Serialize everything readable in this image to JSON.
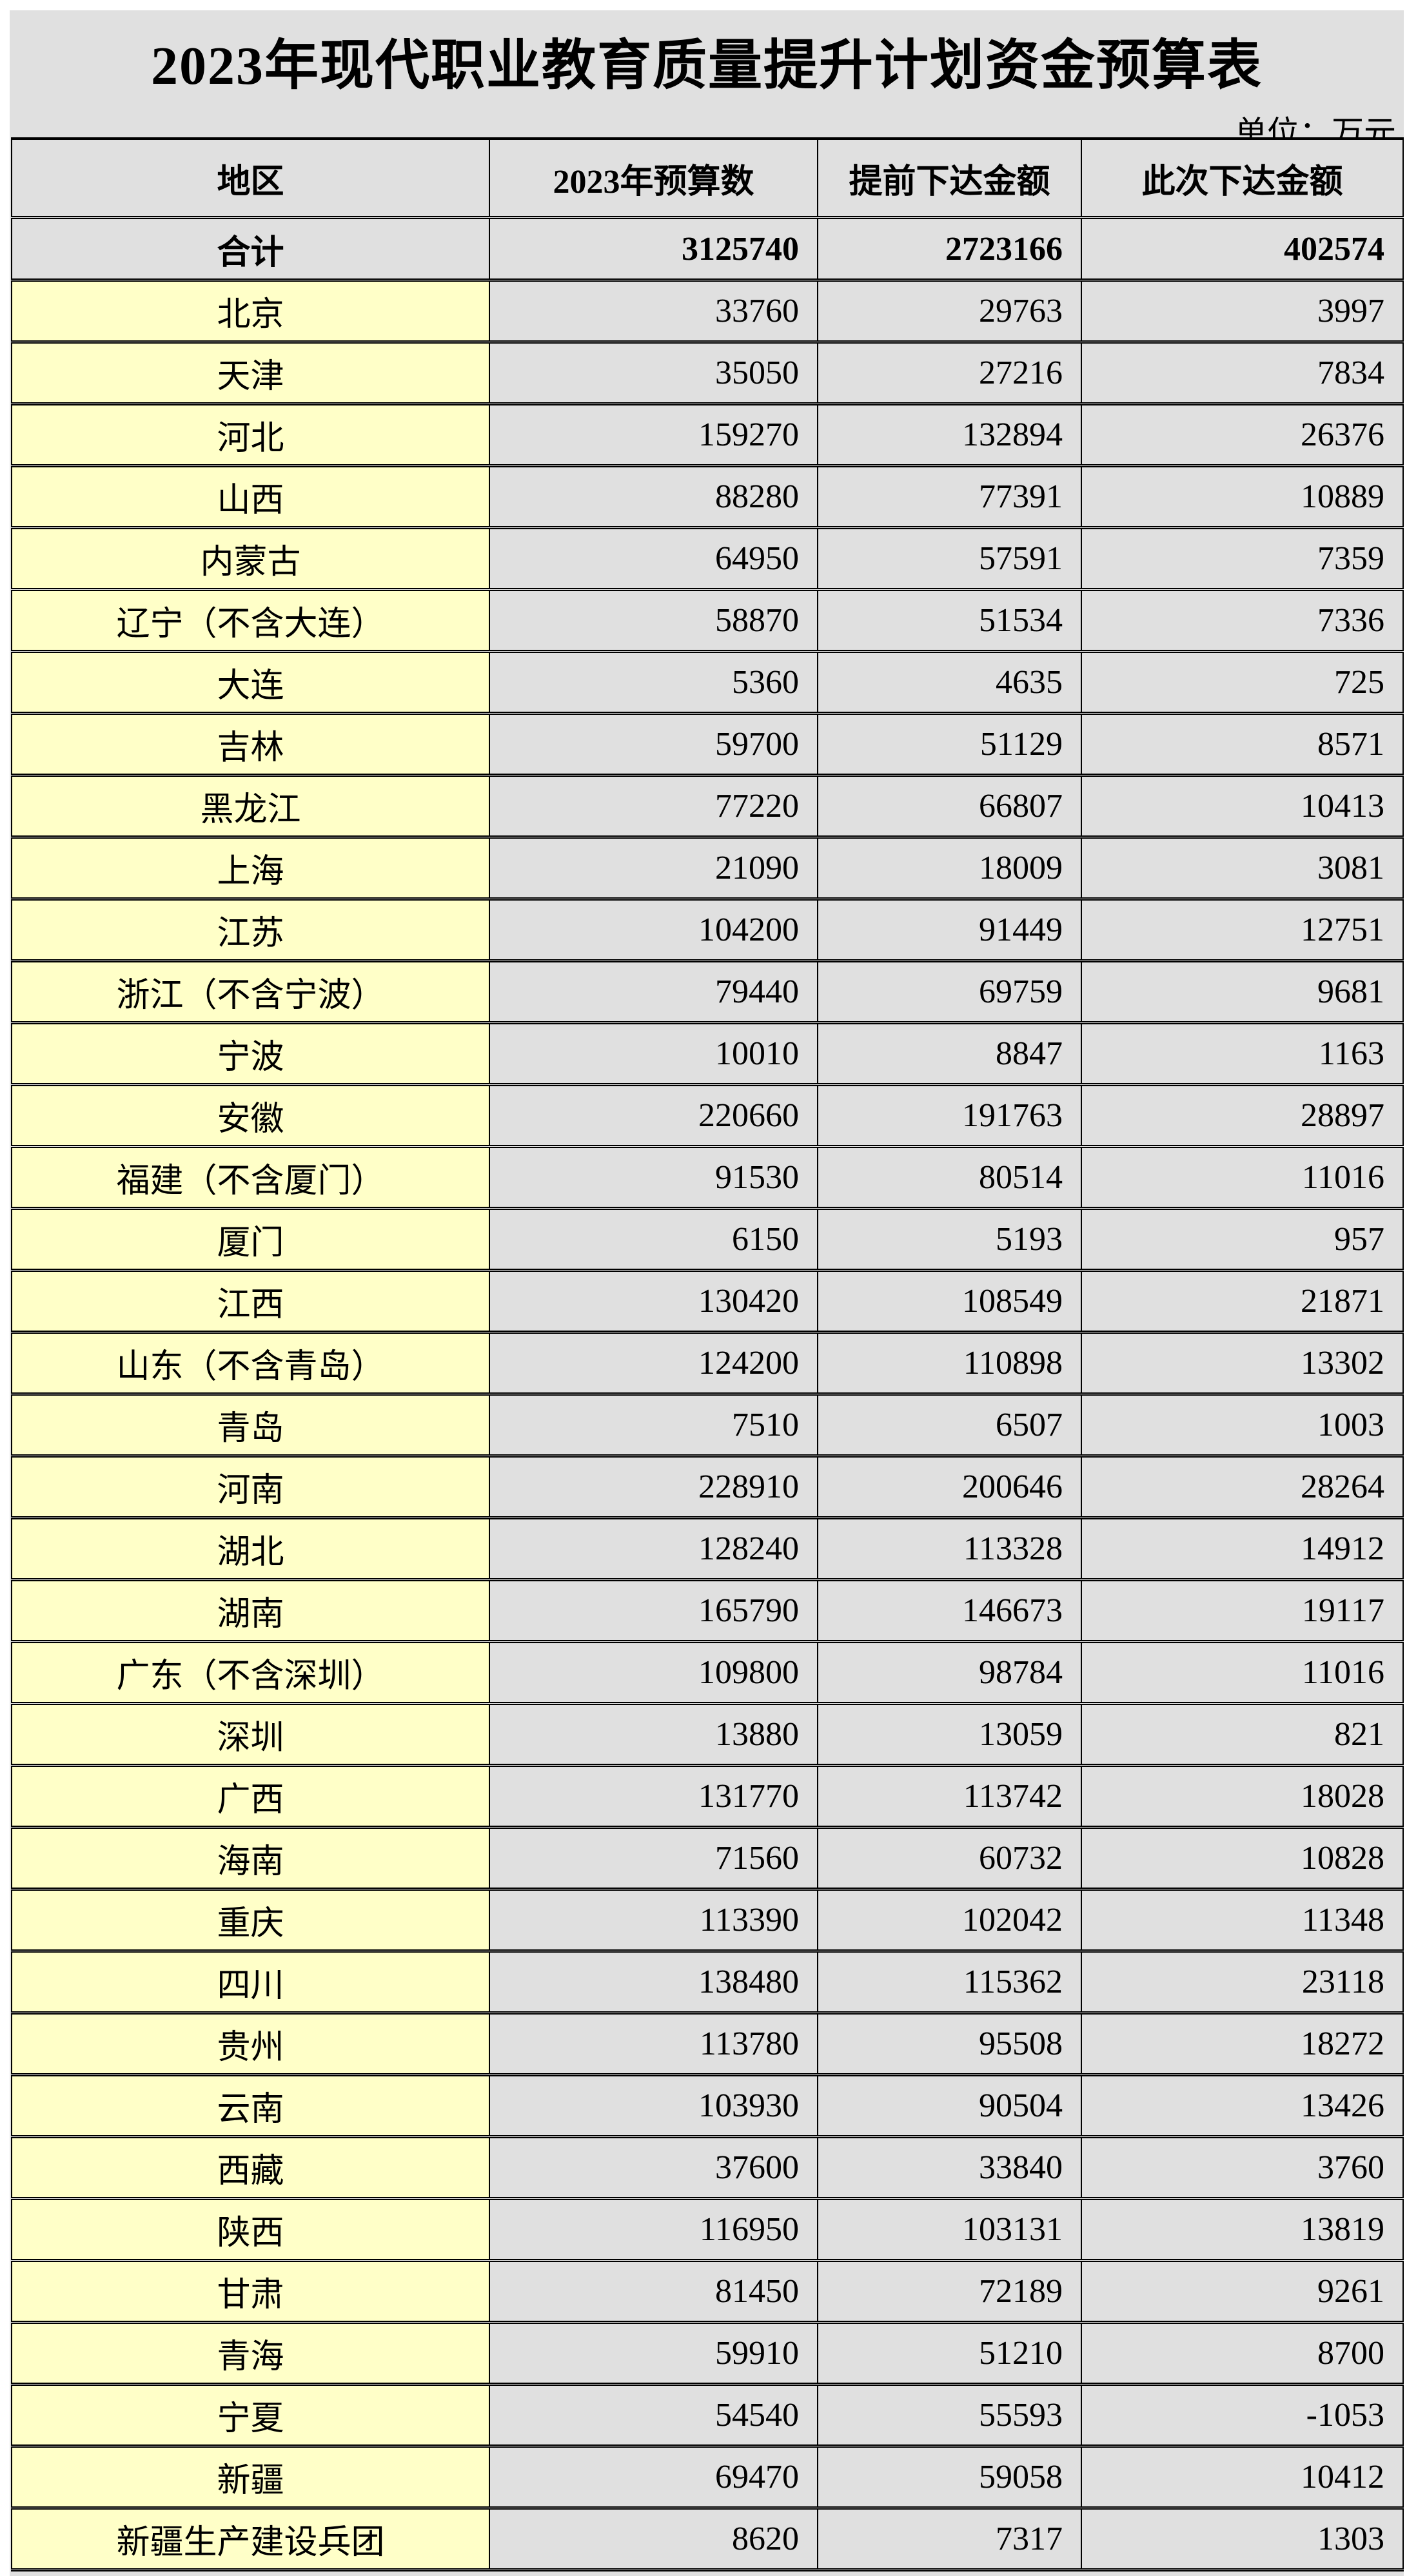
{
  "title": "2023年现代职业教育质量提升计划资金预算表",
  "unit": "单位：万元",
  "colors": {
    "background": "#e0e0e0",
    "region_cell": "#ffffc8"
  },
  "columns": [
    "地区",
    "2023年预算数",
    "提前下达金额",
    "此次下达金额"
  ],
  "total": {
    "region": "合计",
    "budget": "3125740",
    "advance": "2723166",
    "current": "402574"
  },
  "rows": [
    [
      "北京",
      "33760",
      "29763",
      "3997"
    ],
    [
      "天津",
      "35050",
      "27216",
      "7834"
    ],
    [
      "河北",
      "159270",
      "132894",
      "26376"
    ],
    [
      "山西",
      "88280",
      "77391",
      "10889"
    ],
    [
      "内蒙古",
      "64950",
      "57591",
      "7359"
    ],
    [
      "辽宁（不含大连）",
      "58870",
      "51534",
      "7336"
    ],
    [
      "大连",
      "5360",
      "4635",
      "725"
    ],
    [
      "吉林",
      "59700",
      "51129",
      "8571"
    ],
    [
      "黑龙江",
      "77220",
      "66807",
      "10413"
    ],
    [
      "上海",
      "21090",
      "18009",
      "3081"
    ],
    [
      "江苏",
      "104200",
      "91449",
      "12751"
    ],
    [
      "浙江（不含宁波）",
      "79440",
      "69759",
      "9681"
    ],
    [
      "宁波",
      "10010",
      "8847",
      "1163"
    ],
    [
      "安徽",
      "220660",
      "191763",
      "28897"
    ],
    [
      "福建（不含厦门）",
      "91530",
      "80514",
      "11016"
    ],
    [
      "厦门",
      "6150",
      "5193",
      "957"
    ],
    [
      "江西",
      "130420",
      "108549",
      "21871"
    ],
    [
      "山东（不含青岛）",
      "124200",
      "110898",
      "13302"
    ],
    [
      "青岛",
      "7510",
      "6507",
      "1003"
    ],
    [
      "河南",
      "228910",
      "200646",
      "28264"
    ],
    [
      "湖北",
      "128240",
      "113328",
      "14912"
    ],
    [
      "湖南",
      "165790",
      "146673",
      "19117"
    ],
    [
      "广东（不含深圳）",
      "109800",
      "98784",
      "11016"
    ],
    [
      "深圳",
      "13880",
      "13059",
      "821"
    ],
    [
      "广西",
      "131770",
      "113742",
      "18028"
    ],
    [
      "海南",
      "71560",
      "60732",
      "10828"
    ],
    [
      "重庆",
      "113390",
      "102042",
      "11348"
    ],
    [
      "四川",
      "138480",
      "115362",
      "23118"
    ],
    [
      "贵州",
      "113780",
      "95508",
      "18272"
    ],
    [
      "云南",
      "103930",
      "90504",
      "13426"
    ],
    [
      "西藏",
      "37600",
      "33840",
      "3760"
    ],
    [
      "陕西",
      "116950",
      "103131",
      "13819"
    ],
    [
      "甘肃",
      "81450",
      "72189",
      "9261"
    ],
    [
      "青海",
      "59910",
      "51210",
      "8700"
    ],
    [
      "宁夏",
      "54540",
      "55593",
      "-1053"
    ],
    [
      "新疆",
      "69470",
      "59058",
      "10412"
    ],
    [
      "新疆生产建设兵团",
      "8620",
      "7317",
      "1303"
    ]
  ]
}
